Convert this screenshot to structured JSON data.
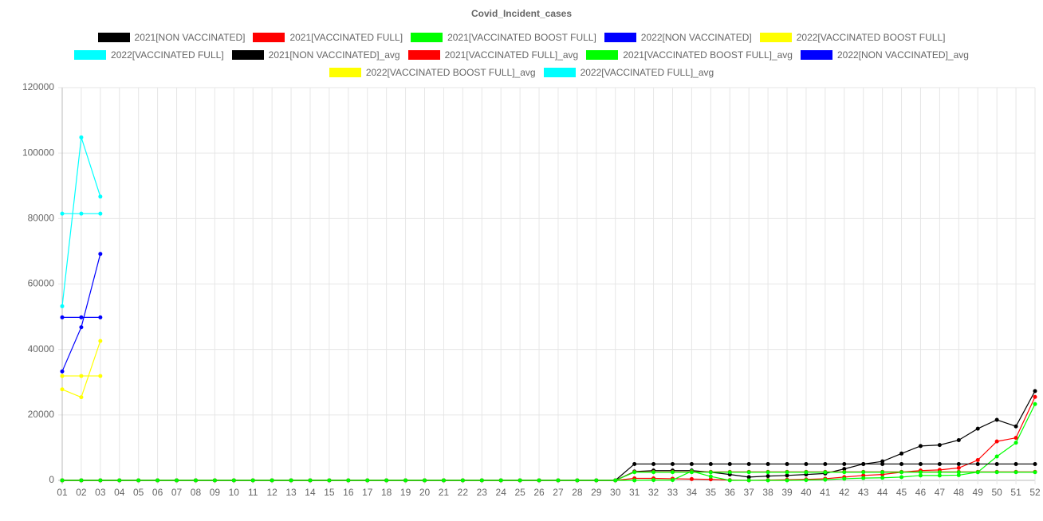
{
  "chart_data": {
    "type": "line",
    "title": "Covid_Incident_cases",
    "categories": [
      "01",
      "02",
      "03",
      "04",
      "05",
      "06",
      "07",
      "08",
      "09",
      "10",
      "11",
      "12",
      "13",
      "14",
      "15",
      "16",
      "17",
      "18",
      "19",
      "20",
      "21",
      "22",
      "23",
      "24",
      "25",
      "26",
      "27",
      "28",
      "29",
      "30",
      "31",
      "32",
      "33",
      "34",
      "35",
      "36",
      "37",
      "38",
      "39",
      "40",
      "41",
      "42",
      "43",
      "44",
      "45",
      "46",
      "47",
      "48",
      "49",
      "50",
      "51",
      "52"
    ],
    "ylim": [
      0,
      120000
    ],
    "yticks": [
      0,
      20000,
      40000,
      60000,
      80000,
      100000,
      120000
    ],
    "grid": true,
    "series": [
      {
        "name": "2021[NON VACCINATED]",
        "color": "#000000",
        "values": [
          0,
          0,
          0,
          0,
          0,
          0,
          0,
          0,
          0,
          0,
          0,
          0,
          0,
          0,
          0,
          0,
          0,
          0,
          0,
          0,
          0,
          0,
          0,
          0,
          0,
          0,
          0,
          0,
          0,
          0,
          2700,
          3000,
          3000,
          3000,
          2500,
          1800,
          1000,
          1300,
          1500,
          1800,
          2100,
          3500,
          5000,
          5800,
          8200,
          10500,
          10800,
          12300,
          15800,
          18500,
          16500,
          27300
        ]
      },
      {
        "name": "2021[VACCINATED FULL]",
        "color": "#ff0000",
        "values": [
          0,
          0,
          0,
          0,
          0,
          0,
          0,
          0,
          0,
          0,
          0,
          0,
          0,
          0,
          0,
          0,
          0,
          0,
          0,
          0,
          0,
          0,
          0,
          0,
          0,
          0,
          0,
          0,
          0,
          0,
          600,
          600,
          500,
          400,
          300,
          100,
          0,
          100,
          200,
          300,
          500,
          1000,
          1500,
          1800,
          2500,
          3000,
          3200,
          3800,
          6200,
          11900,
          13000,
          25500
        ]
      },
      {
        "name": "2021[VACCINATED BOOST FULL]",
        "color": "#00ff00",
        "values": [
          0,
          0,
          0,
          0,
          0,
          0,
          0,
          0,
          0,
          0,
          0,
          0,
          0,
          0,
          0,
          0,
          0,
          0,
          0,
          0,
          0,
          0,
          0,
          0,
          0,
          0,
          0,
          0,
          0,
          0,
          0,
          100,
          100,
          2800,
          1200,
          0,
          0,
          0,
          0,
          100,
          200,
          500,
          700,
          800,
          1000,
          1500,
          1500,
          1600,
          2500,
          7300,
          11500,
          23300
        ]
      },
      {
        "name": "2022[NON VACCINATED]",
        "color": "#0000ff",
        "values": [
          33300,
          46800,
          69200,
          null,
          null,
          null,
          null,
          null,
          null,
          null,
          null,
          null,
          null,
          null,
          null,
          null,
          null,
          null,
          null,
          null,
          null,
          null,
          null,
          null,
          null,
          null,
          null,
          null,
          null,
          null,
          null,
          null,
          null,
          null,
          null,
          null,
          null,
          null,
          null,
          null,
          null,
          null,
          null,
          null,
          null,
          null,
          null,
          null,
          null,
          null,
          null,
          null
        ]
      },
      {
        "name": "2022[VACCINATED BOOST FULL]",
        "color": "#ffff00",
        "values": [
          27800,
          25400,
          42600,
          null,
          null,
          null,
          null,
          null,
          null,
          null,
          null,
          null,
          null,
          null,
          null,
          null,
          null,
          null,
          null,
          null,
          null,
          null,
          null,
          null,
          null,
          null,
          null,
          null,
          null,
          null,
          null,
          null,
          null,
          null,
          null,
          null,
          null,
          null,
          null,
          null,
          null,
          null,
          null,
          null,
          null,
          null,
          null,
          null,
          null,
          null,
          null,
          null
        ]
      },
      {
        "name": "2022[VACCINATED FULL]",
        "color": "#00ffff",
        "values": [
          53200,
          104800,
          86700,
          null,
          null,
          null,
          null,
          null,
          null,
          null,
          null,
          null,
          null,
          null,
          null,
          null,
          null,
          null,
          null,
          null,
          null,
          null,
          null,
          null,
          null,
          null,
          null,
          null,
          null,
          null,
          null,
          null,
          null,
          null,
          null,
          null,
          null,
          null,
          null,
          null,
          null,
          null,
          null,
          null,
          null,
          null,
          null,
          null,
          null,
          null,
          null,
          null
        ]
      },
      {
        "name": "2021[NON VACCINATED]_avg",
        "color": "#000000",
        "values": [
          0,
          0,
          0,
          0,
          0,
          0,
          0,
          0,
          0,
          0,
          0,
          0,
          0,
          0,
          0,
          0,
          0,
          0,
          0,
          0,
          0,
          0,
          0,
          0,
          0,
          0,
          0,
          0,
          0,
          0,
          5000,
          5000,
          5000,
          5000,
          5000,
          5000,
          5000,
          5000,
          5000,
          5000,
          5000,
          5000,
          5000,
          5000,
          5000,
          5000,
          5000,
          5000,
          5000,
          5000,
          5000,
          5000
        ]
      },
      {
        "name": "2021[VACCINATED FULL]_avg",
        "color": "#ff0000",
        "values": [
          0,
          0,
          0,
          0,
          0,
          0,
          0,
          0,
          0,
          0,
          0,
          0,
          0,
          0,
          0,
          0,
          0,
          0,
          0,
          0,
          0,
          0,
          0,
          0,
          0,
          0,
          0,
          0,
          0,
          0,
          2600,
          2600,
          2600,
          2600,
          2600,
          2600,
          2600,
          2600,
          2600,
          2600,
          2600,
          2600,
          2600,
          2600,
          2600,
          2600,
          2600,
          2600,
          2600,
          2600,
          2600,
          2600
        ]
      },
      {
        "name": "2021[VACCINATED BOOST FULL]_avg",
        "color": "#00ff00",
        "values": [
          0,
          0,
          0,
          0,
          0,
          0,
          0,
          0,
          0,
          0,
          0,
          0,
          0,
          0,
          0,
          0,
          0,
          0,
          0,
          0,
          0,
          0,
          0,
          0,
          0,
          0,
          0,
          0,
          0,
          0,
          2500,
          2500,
          2500,
          2500,
          2500,
          2500,
          2500,
          2500,
          2500,
          2500,
          2500,
          2500,
          2500,
          2500,
          2500,
          2500,
          2500,
          2500,
          2500,
          2500,
          2500,
          2500
        ]
      },
      {
        "name": "2022[NON VACCINATED]_avg",
        "color": "#0000ff",
        "values": [
          49800,
          49800,
          49800,
          null,
          null,
          null,
          null,
          null,
          null,
          null,
          null,
          null,
          null,
          null,
          null,
          null,
          null,
          null,
          null,
          null,
          null,
          null,
          null,
          null,
          null,
          null,
          null,
          null,
          null,
          null,
          null,
          null,
          null,
          null,
          null,
          null,
          null,
          null,
          null,
          null,
          null,
          null,
          null,
          null,
          null,
          null,
          null,
          null,
          null,
          null,
          null,
          null
        ]
      },
      {
        "name": "2022[VACCINATED BOOST FULL]_avg",
        "color": "#ffff00",
        "values": [
          31900,
          31900,
          31900,
          null,
          null,
          null,
          null,
          null,
          null,
          null,
          null,
          null,
          null,
          null,
          null,
          null,
          null,
          null,
          null,
          null,
          null,
          null,
          null,
          null,
          null,
          null,
          null,
          null,
          null,
          null,
          null,
          null,
          null,
          null,
          null,
          null,
          null,
          null,
          null,
          null,
          null,
          null,
          null,
          null,
          null,
          null,
          null,
          null,
          null,
          null,
          null,
          null
        ]
      },
      {
        "name": "2022[VACCINATED FULL]_avg",
        "color": "#00ffff",
        "values": [
          81500,
          81500,
          81500,
          null,
          null,
          null,
          null,
          null,
          null,
          null,
          null,
          null,
          null,
          null,
          null,
          null,
          null,
          null,
          null,
          null,
          null,
          null,
          null,
          null,
          null,
          null,
          null,
          null,
          null,
          null,
          null,
          null,
          null,
          null,
          null,
          null,
          null,
          null,
          null,
          null,
          null,
          null,
          null,
          null,
          null,
          null,
          null,
          null,
          null,
          null,
          null,
          null
        ]
      }
    ]
  }
}
